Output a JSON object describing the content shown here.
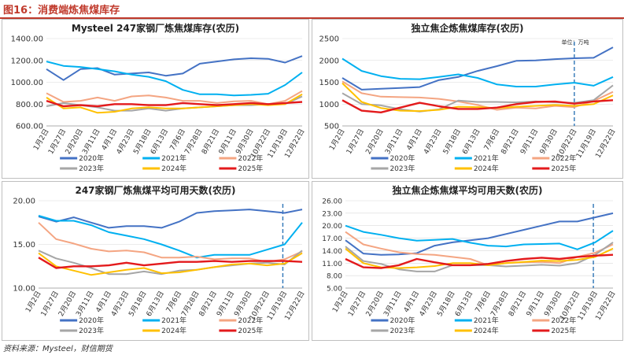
{
  "figure": {
    "title": "图16：消费端炼焦煤库存",
    "source": "资料来源：Mysteel，财信期货"
  },
  "colors": {
    "2020": "#4472c4",
    "2021": "#00b0f0",
    "2022": "#f4a582",
    "2023": "#a6a6a6",
    "2024": "#ffc000",
    "2025": "#e31a1c",
    "marker": "#2e75b6"
  },
  "chart_data": [
    {
      "type": "line",
      "title": "Mysteel 247家钢厂炼焦煤库存(农历)",
      "unit_note": "",
      "x": [
        "1月2日",
        "1月27日",
        "2月20日",
        "3月11日",
        "4月1日",
        "4月23日",
        "5月18日",
        "6月13日",
        "7月6日",
        "7月28日",
        "8月21日",
        "9月11日",
        "9月30日",
        "10月22日",
        "11月19日",
        "12月22日"
      ],
      "yticks": [
        "1400.00",
        "1200.00",
        "1000.00",
        "800.00",
        "600.00"
      ],
      "ylim": [
        600,
        1400
      ],
      "marker_x": null,
      "series": [
        {
          "name": "2020年",
          "values": [
            1120,
            1020,
            1120,
            1130,
            1070,
            1080,
            1090,
            1060,
            1080,
            1170,
            1190,
            1210,
            1220,
            1215,
            1180,
            1240
          ]
        },
        {
          "name": "2021年",
          "values": [
            1190,
            1150,
            1140,
            1120,
            1100,
            1070,
            1050,
            1010,
            930,
            890,
            890,
            880,
            885,
            895,
            975,
            1090
          ]
        },
        {
          "name": "2022年",
          "values": [
            900,
            820,
            830,
            860,
            830,
            870,
            880,
            860,
            830,
            830,
            810,
            825,
            830,
            800,
            830,
            920
          ]
        },
        {
          "name": "2023年",
          "values": [
            780,
            810,
            790,
            770,
            740,
            740,
            760,
            740,
            760,
            770,
            780,
            790,
            790,
            800,
            800,
            870
          ]
        },
        {
          "name": "2024年",
          "values": [
            860,
            760,
            770,
            720,
            730,
            760,
            770,
            760,
            760,
            770,
            780,
            790,
            800,
            790,
            800,
            890
          ]
        },
        {
          "name": "2025年",
          "values": [
            830,
            780,
            790,
            780,
            800,
            800,
            790,
            790,
            810,
            800,
            790,
            800,
            810,
            800,
            810,
            820
          ]
        }
      ]
    },
    {
      "type": "line",
      "title": "独立焦企炼焦煤库存(农历)",
      "unit_note": "单位：万吨",
      "x": [
        "1月2日",
        "1月27日",
        "2月20日",
        "3月11日",
        "4月1日",
        "4月23日",
        "5月18日",
        "6月13日",
        "7月6日",
        "8月21日",
        "9月11日",
        "9月30日",
        "10月22日",
        "11月19日",
        "12月22日"
      ],
      "yticks": [
        "2500",
        "2000",
        "1500",
        "1000",
        "500"
      ],
      "ylim": [
        500,
        2500
      ],
      "marker_x": 12,
      "series": [
        {
          "name": "2020年",
          "values": [
            1600,
            1330,
            1350,
            1370,
            1390,
            1550,
            1620,
            1760,
            1870,
            1990,
            2000,
            2030,
            2050,
            2060,
            2300
          ]
        },
        {
          "name": "2021年",
          "values": [
            2040,
            1760,
            1640,
            1580,
            1570,
            1620,
            1680,
            1600,
            1450,
            1400,
            1400,
            1450,
            1490,
            1420,
            1620
          ]
        },
        {
          "name": "2022年",
          "values": [
            1520,
            1250,
            1170,
            1160,
            1150,
            1120,
            1060,
            980,
            870,
            920,
            900,
            960,
            930,
            1070,
            1280
          ]
        },
        {
          "name": "2023年",
          "values": [
            1250,
            1000,
            970,
            880,
            830,
            880,
            1080,
            1050,
            1050,
            1040,
            1060,
            1040,
            1030,
            1090,
            1430
          ]
        },
        {
          "name": "2024年",
          "values": [
            1480,
            1050,
            910,
            850,
            840,
            870,
            940,
            930,
            910,
            940,
            960,
            980,
            960,
            1000,
            1200
          ]
        },
        {
          "name": "2025年",
          "values": [
            1090,
            850,
            810,
            920,
            1030,
            950,
            890,
            890,
            920,
            1000,
            1050,
            1060,
            1010,
            1060,
            1090
          ]
        }
      ]
    },
    {
      "type": "line",
      "title": "247家钢厂炼焦煤平均可用天数(农历)",
      "unit_note": "",
      "x": [
        "1月2日",
        "1月27日",
        "2月20日",
        "3月11日",
        "4月1日",
        "4月23日",
        "5月18日",
        "6月13日",
        "7月6日",
        "7月28日",
        "8月21日",
        "9月11日",
        "9月30日",
        "10月22日",
        "11月19日",
        "12月22日"
      ],
      "yticks": [
        "20.00",
        "15.00",
        "10.00"
      ],
      "ylim": [
        10,
        20
      ],
      "marker_x": 13.9,
      "series": [
        {
          "name": "2020年",
          "values": [
            18.2,
            17.6,
            18.1,
            17.5,
            16.9,
            17.1,
            17.1,
            16.9,
            17.6,
            18.6,
            18.8,
            18.9,
            19.0,
            18.8,
            18.6,
            19.0
          ]
        },
        {
          "name": "2021年",
          "values": [
            18.3,
            17.7,
            17.7,
            17.2,
            16.4,
            16.0,
            15.6,
            15.0,
            14.3,
            13.5,
            13.8,
            13.8,
            13.8,
            14.4,
            15.0,
            17.5
          ]
        },
        {
          "name": "2022年",
          "values": [
            17.5,
            15.6,
            15.1,
            14.5,
            14.2,
            14.3,
            14.1,
            13.5,
            13.5,
            13.6,
            13.3,
            13.4,
            13.4,
            13.0,
            13.3,
            14.2
          ]
        },
        {
          "name": "2023年",
          "values": [
            14.3,
            13.4,
            12.9,
            12.3,
            11.6,
            11.6,
            11.9,
            11.6,
            12.0,
            12.1,
            12.4,
            12.6,
            12.8,
            12.9,
            12.7,
            14.3
          ]
        },
        {
          "name": "2024年",
          "values": [
            14.0,
            12.5,
            12.0,
            11.5,
            11.8,
            12.1,
            12.3,
            11.7,
            11.8,
            12.1,
            12.4,
            12.7,
            12.8,
            12.6,
            12.8,
            14.0
          ]
        },
        {
          "name": "2025年",
          "values": [
            13.5,
            12.3,
            12.5,
            12.5,
            12.6,
            12.9,
            12.6,
            12.8,
            13.0,
            13.0,
            13.1,
            13.0,
            13.1,
            13.1,
            13.1,
            13.0
          ]
        }
      ]
    },
    {
      "type": "line",
      "title": "独立焦企炼焦煤平均可用天数(农历)",
      "unit_note": "",
      "x": [
        "1月2日",
        "1月27日",
        "2月20日",
        "3月11日",
        "4月1日",
        "4月23日",
        "5月18日",
        "6月13日",
        "7月6日",
        "7月28日",
        "8月21日",
        "9月11日",
        "9月30日",
        "10月22日",
        "11月19日",
        "12月22日"
      ],
      "yticks": [
        "26.00",
        "23.00",
        "20.00",
        "17.00",
        "14.00",
        "11.00",
        "8.00",
        "5.00"
      ],
      "ylim": [
        5,
        26
      ],
      "marker_x": 13.9,
      "series": [
        {
          "name": "2020年",
          "values": [
            16.5,
            13.3,
            13.0,
            13.1,
            13.4,
            15.2,
            16.0,
            16.5,
            17.0,
            18.0,
            19.0,
            20.0,
            21.0,
            21.0,
            22.0,
            23.0
          ]
        },
        {
          "name": "2021年",
          "values": [
            20.0,
            18.5,
            17.8,
            17.0,
            16.4,
            16.6,
            16.8,
            15.9,
            15.2,
            15.0,
            15.5,
            15.6,
            15.7,
            14.3,
            16.0,
            18.8
          ]
        },
        {
          "name": "2022年",
          "values": [
            18.5,
            15.5,
            14.5,
            13.6,
            13.2,
            13.0,
            12.5,
            12.0,
            10.5,
            11.0,
            11.2,
            11.3,
            11.0,
            12.5,
            13.5,
            15.5
          ]
        },
        {
          "name": "2023年",
          "values": [
            15.0,
            11.5,
            10.8,
            9.5,
            9.0,
            9.0,
            10.5,
            10.5,
            10.5,
            10.2,
            10.4,
            10.6,
            10.4,
            11.0,
            13.0,
            16.0
          ]
        },
        {
          "name": "2024年",
          "values": [
            14.5,
            11.0,
            10.0,
            9.8,
            10.0,
            10.3,
            11.0,
            11.0,
            10.5,
            11.0,
            11.3,
            11.6,
            11.5,
            11.8,
            12.5,
            14.5
          ]
        },
        {
          "name": "2025年",
          "values": [
            12.0,
            10.0,
            9.8,
            10.5,
            12.0,
            11.2,
            10.5,
            10.5,
            10.8,
            11.5,
            12.0,
            12.3,
            12.0,
            12.5,
            12.8,
            13.0
          ]
        }
      ]
    }
  ]
}
